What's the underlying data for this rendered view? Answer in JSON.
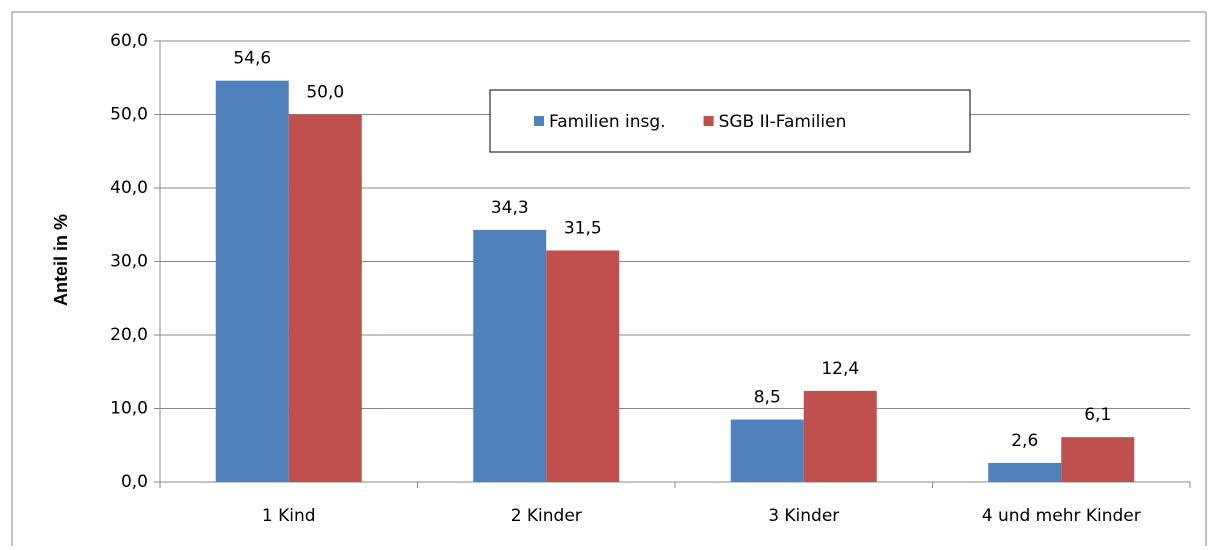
{
  "chart_data": {
    "type": "bar",
    "y_label": "Anteil in %",
    "categories": [
      "1 Kind",
      "2 Kinder",
      "3 Kinder",
      "4 und mehr Kinder"
    ],
    "series": [
      {
        "name": "Familien insg.",
        "color": "#4f81bd",
        "values": [
          54.6,
          34.3,
          8.5,
          2.6
        ],
        "value_labels": [
          "54,6",
          "34,3",
          "8,5",
          "2,6"
        ]
      },
      {
        "name": "SGB II-Familien",
        "color": "#c0504d",
        "values": [
          50.0,
          31.5,
          12.4,
          6.1
        ],
        "value_labels": [
          "50,0",
          "31,5",
          "12,4",
          "6,1"
        ]
      }
    ],
    "ylim": [
      0,
      60
    ],
    "yticks": [
      {
        "value": 0,
        "label": "0,0"
      },
      {
        "value": 10,
        "label": "10,0"
      },
      {
        "value": 20,
        "label": "20,0"
      },
      {
        "value": 30,
        "label": "30,0"
      },
      {
        "value": 40,
        "label": "40,0"
      },
      {
        "value": 50,
        "label": "50,0"
      },
      {
        "value": 60,
        "label": "60,0"
      }
    ],
    "grid": true
  }
}
